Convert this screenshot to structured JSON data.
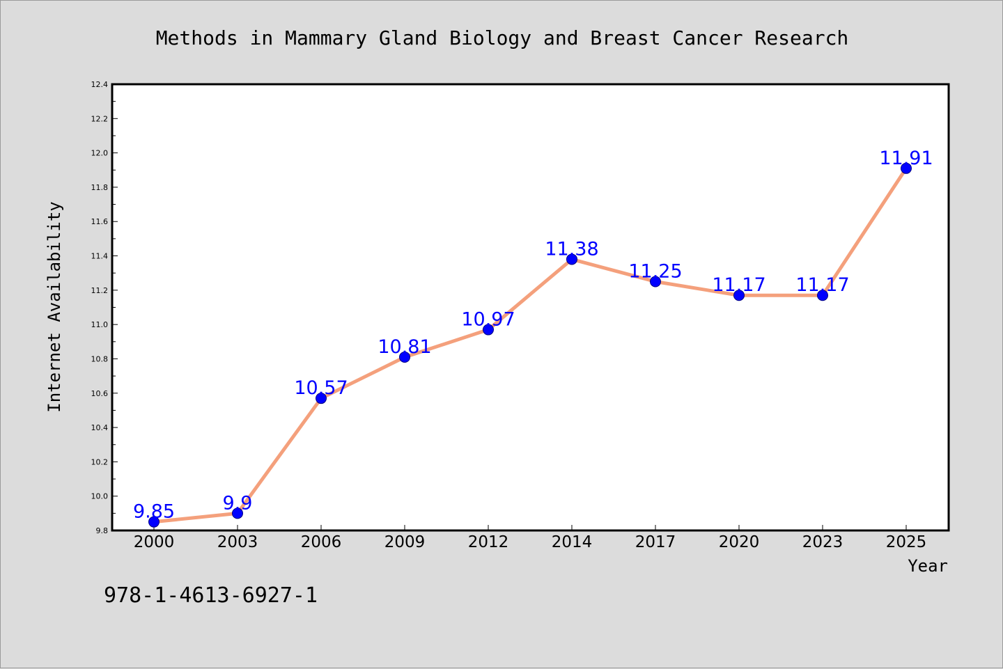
{
  "chart_data": {
    "type": "line",
    "title": "Methods in Mammary Gland Biology and Breast Cancer Research",
    "xlabel": "Year",
    "ylabel": "Internet Availability",
    "categories": [
      "2000",
      "2003",
      "2006",
      "2009",
      "2012",
      "2014",
      "2017",
      "2020",
      "2023",
      "2025"
    ],
    "series": [
      {
        "values": [
          9.85,
          9.9,
          10.57,
          10.81,
          10.97,
          11.38,
          11.25,
          11.17,
          11.17,
          11.91
        ],
        "data_labels": [
          "9.85",
          "9.9",
          "10.57",
          "10.81",
          "10.97",
          "11.38",
          "11.25",
          "11.17",
          "11.17",
          "11.91"
        ]
      }
    ],
    "ylim": [
      9.8,
      12.4
    ],
    "y_ticks": [
      "9.8",
      "10.0",
      "10.2",
      "10.4",
      "10.6",
      "10.8",
      "11.0",
      "11.2",
      "11.4",
      "11.6",
      "11.8",
      "12.0",
      "12.2",
      "12.4"
    ],
    "grid": false,
    "legend": "none",
    "colors": {
      "line": "#f4a07c",
      "marker": "#0000ff",
      "marker_edge": "#000080",
      "data_label": "#0000ff",
      "plot_bg": "#ffffff",
      "figure_bg": "#dcdcdc"
    }
  },
  "footer_text": "978-1-4613-6927-1"
}
